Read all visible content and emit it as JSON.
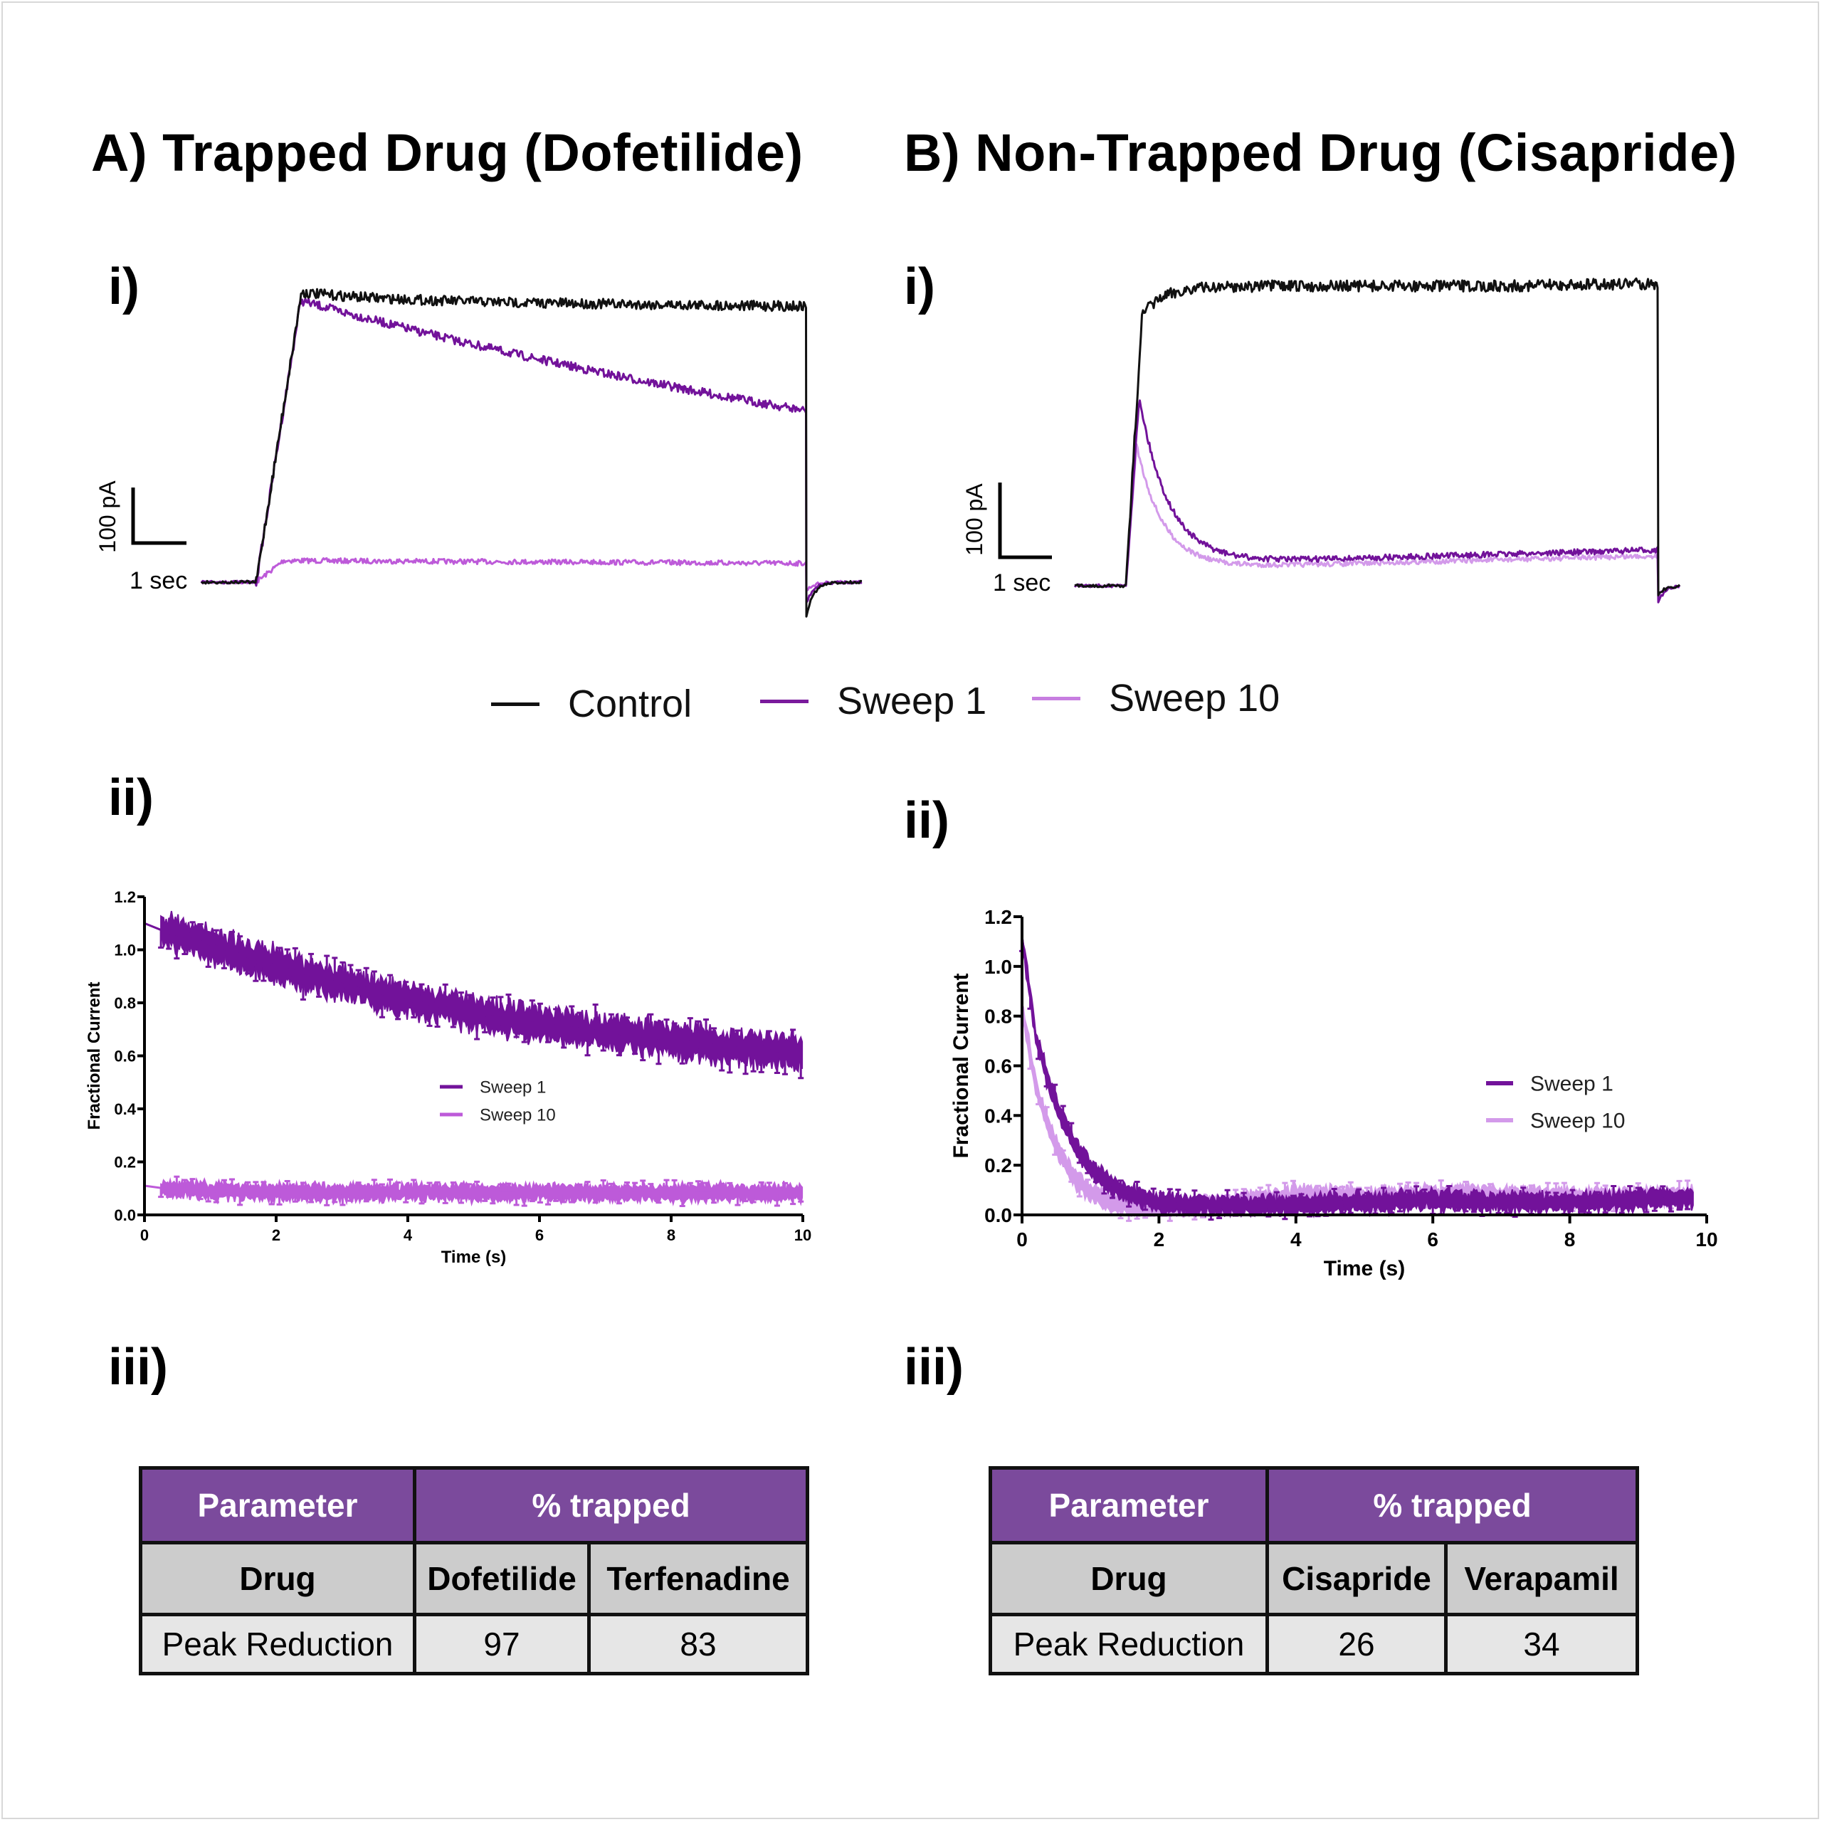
{
  "panel_a": {
    "title": "A) Trapped Drug (Dofetilide)",
    "label_i": "i)",
    "label_ii": "ii)",
    "label_iii": "iii)",
    "scalebar": {
      "current": "100 pA",
      "time": "1 sec"
    },
    "table": {
      "header": [
        "Parameter",
        "% trapped"
      ],
      "subheader": [
        "Drug",
        "Dofetilide",
        "Terfenadine"
      ],
      "rows": [
        {
          "label": "Peak Reduction",
          "values": [
            "97",
            "83"
          ]
        }
      ]
    }
  },
  "panel_b": {
    "title": "B) Non-Trapped Drug (Cisapride)",
    "label_i": "i)",
    "label_ii": "ii)",
    "label_iii": "iii)",
    "scalebar": {
      "current": "100 pA",
      "time": "1 sec"
    },
    "table": {
      "header": [
        "Parameter",
        "% trapped"
      ],
      "subheader": [
        "Drug",
        "Cisapride",
        "Verapamil"
      ],
      "rows": [
        {
          "label": "Peak Reduction",
          "values": [
            "26",
            "34"
          ]
        }
      ]
    }
  },
  "legend": {
    "items": [
      {
        "label": "Control",
        "color": "#111111"
      },
      {
        "label": "Sweep 1",
        "color": "#7a1a9c"
      },
      {
        "label": "Sweep 10",
        "color": "#c77ee0"
      }
    ]
  },
  "colors": {
    "control": "#111111",
    "sweep1": "#72129a",
    "sweep10": "#bd5ad9",
    "sweep10_b": "#d39aea",
    "table_header": "#7b4a9c",
    "table_subheader": "#cccccc",
    "table_value": "#e6e6e6"
  },
  "chart_data": [
    {
      "id": "A-ii",
      "type": "line",
      "title": "",
      "xlabel": "Time (s)",
      "ylabel": "Fractional Current",
      "xlim": [
        0,
        10
      ],
      "ylim": [
        0,
        1.2
      ],
      "xticks": [
        "0",
        "2",
        "4",
        "6",
        "8",
        "10"
      ],
      "yticks": [
        "0.0",
        "0.2",
        "0.4",
        "0.6",
        "0.8",
        "1.0",
        "1.2"
      ],
      "legend": "center",
      "series": [
        {
          "name": "Sweep 1",
          "color": "#72129a",
          "x": [
            0,
            0.3,
            1,
            2,
            3,
            4,
            5,
            6,
            7,
            8,
            9,
            10
          ],
          "y": [
            1.1,
            1.07,
            1.02,
            0.94,
            0.87,
            0.81,
            0.76,
            0.72,
            0.69,
            0.66,
            0.63,
            0.61
          ],
          "error": 0.05
        },
        {
          "name": "Sweep 10",
          "color": "#bd5ad9",
          "x": [
            0,
            0.3,
            1,
            2,
            4,
            6,
            8,
            10
          ],
          "y": [
            0.11,
            0.1,
            0.09,
            0.085,
            0.085,
            0.083,
            0.083,
            0.085
          ],
          "error": 0.025
        }
      ]
    },
    {
      "id": "B-ii",
      "type": "line",
      "title": "",
      "xlabel": "Time (s)",
      "ylabel": "Fractional Current",
      "xlim": [
        0,
        10
      ],
      "ylim": [
        0,
        1.2
      ],
      "xticks": [
        "0",
        "2",
        "4",
        "6",
        "8",
        "10"
      ],
      "yticks": [
        "0.0",
        "0.2",
        "0.4",
        "0.6",
        "0.8",
        "1.0",
        "1.2"
      ],
      "legend": "right",
      "series": [
        {
          "name": "Sweep 1",
          "color": "#72129a",
          "x": [
            0,
            0.2,
            0.4,
            0.6,
            0.8,
            1.0,
            1.3,
            1.6,
            2,
            2.5,
            3,
            4,
            5,
            6,
            7,
            8,
            9,
            9.8
          ],
          "y": [
            1.12,
            0.72,
            0.52,
            0.38,
            0.27,
            0.19,
            0.12,
            0.08,
            0.05,
            0.04,
            0.04,
            0.04,
            0.05,
            0.06,
            0.05,
            0.05,
            0.06,
            0.07
          ],
          "error": 0.03
        },
        {
          "name": "Sweep 10",
          "color": "#d39aea",
          "x": [
            0,
            0.2,
            0.4,
            0.6,
            0.8,
            1.0,
            1.3,
            1.6,
            2,
            2.5,
            3,
            4,
            5,
            6,
            7,
            8,
            9,
            9.8
          ],
          "y": [
            0.84,
            0.52,
            0.34,
            0.22,
            0.14,
            0.09,
            0.05,
            0.03,
            0.02,
            0.03,
            0.04,
            0.08,
            0.07,
            0.08,
            0.08,
            0.07,
            0.07,
            0.08
          ],
          "error": 0.03
        }
      ]
    },
    {
      "id": "A-i",
      "type": "line",
      "title": "",
      "xlabel": "",
      "ylabel": "",
      "scalebar": {
        "y": "100 pA",
        "x": "1 sec"
      },
      "series": [
        {
          "name": "Control",
          "baseline": 0,
          "peak": 1.0,
          "end": 0.98
        },
        {
          "name": "Sweep 1",
          "baseline": 0,
          "peak": 0.98,
          "end": 0.55
        },
        {
          "name": "Sweep 10",
          "baseline": 0,
          "peak": 0.06,
          "end": 0.05
        }
      ]
    },
    {
      "id": "B-i",
      "type": "line",
      "title": "",
      "xlabel": "",
      "ylabel": "",
      "scalebar": {
        "y": "100 pA",
        "x": "1 sec"
      },
      "series": [
        {
          "name": "Control",
          "baseline": 0,
          "peak": 1.0,
          "end": 1.02
        },
        {
          "name": "Sweep 1",
          "baseline": 0,
          "peak": 0.63,
          "end": 0.11
        },
        {
          "name": "Sweep 10",
          "baseline": 0,
          "peak": 0.47,
          "end": 0.09
        }
      ]
    }
  ]
}
